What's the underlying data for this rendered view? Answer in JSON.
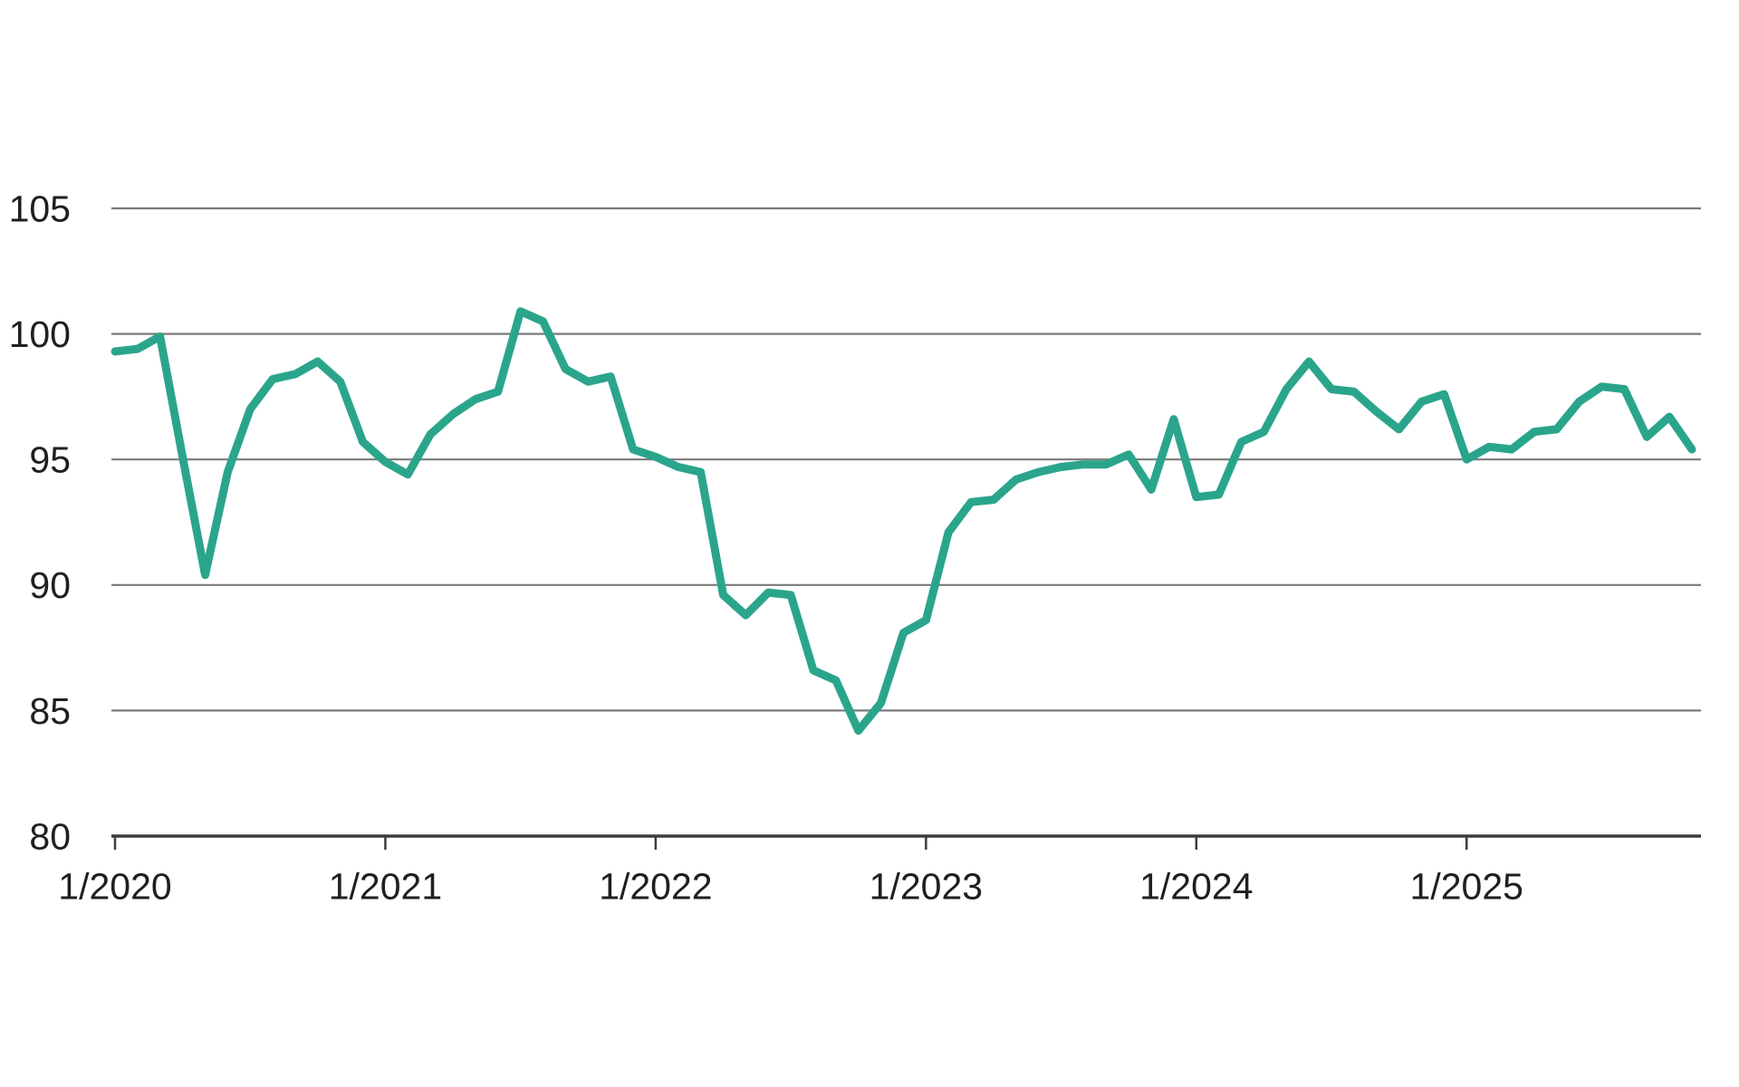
{
  "chart_data": {
    "type": "line",
    "grid": "horizontal",
    "legend": "none",
    "x_tick_labels": [
      "1/2020",
      "1/2021",
      "1/2022",
      "1/2023",
      "1/2024",
      "1/2025"
    ],
    "y_ticks": [
      80,
      85,
      90,
      95,
      100,
      105
    ],
    "ylim": [
      80,
      105
    ],
    "x_start": "1/2020",
    "x_end": "11/2025",
    "frequency": "monthly",
    "series": [
      {
        "name": "index-line",
        "color": "#2aa58c",
        "values": [
          99.3,
          99.4,
          99.9,
          95.1,
          90.4,
          94.5,
          97.0,
          98.2,
          98.4,
          98.9,
          98.1,
          95.7,
          94.9,
          94.4,
          96.0,
          96.8,
          97.4,
          97.7,
          100.9,
          100.5,
          98.6,
          98.1,
          98.3,
          95.4,
          95.1,
          94.7,
          94.5,
          89.6,
          88.8,
          89.7,
          89.6,
          86.6,
          86.2,
          84.2,
          85.3,
          88.1,
          88.6,
          92.1,
          93.3,
          93.4,
          94.2,
          94.5,
          94.7,
          94.8,
          94.8,
          95.2,
          93.8,
          96.6,
          93.5,
          93.6,
          95.7,
          96.1,
          97.8,
          98.9,
          97.8,
          97.7,
          96.9,
          96.2,
          97.3,
          97.6,
          95.0,
          95.5,
          95.4,
          96.1,
          96.2,
          97.3,
          97.9,
          97.8,
          95.9,
          96.7,
          95.4
        ]
      }
    ],
    "colors": {
      "line": "#2aa58c",
      "gridline": "#7a7a7a",
      "axis": "#3c3c3c",
      "label": "#1f1f1f",
      "background": "#ffffff"
    }
  }
}
